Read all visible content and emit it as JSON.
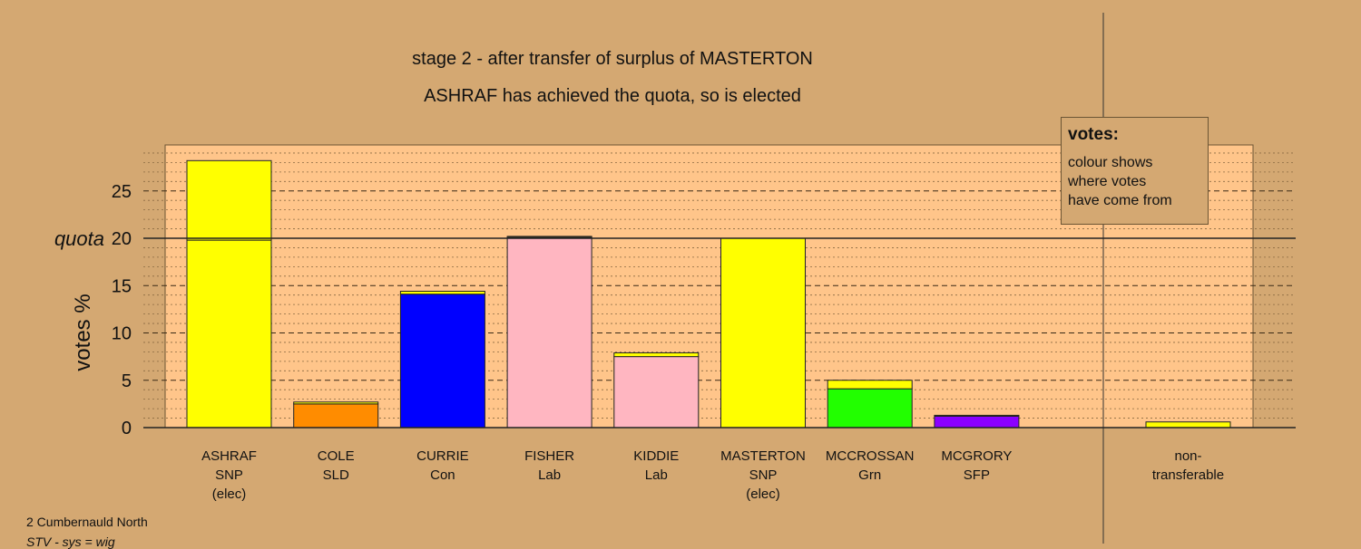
{
  "chart_data": {
    "type": "bar",
    "title": "stage 2 - after transfer of surplus of MASTERTON",
    "subtitle": "ASHRAF has achieved the quota, so is elected",
    "ylabel": "votes %",
    "ylim": [
      0,
      30
    ],
    "yticks": [
      "0",
      "5",
      "10",
      "15",
      "20",
      "25"
    ],
    "quota": {
      "value": 20,
      "label": "quota"
    },
    "grid": true,
    "categories": [
      {
        "name": "ASHRAF",
        "party": "SNP",
        "status": "(elec)"
      },
      {
        "name": "COLE",
        "party": "SLD",
        "status": ""
      },
      {
        "name": "CURRIE",
        "party": "Con",
        "status": ""
      },
      {
        "name": "FISHER",
        "party": "Lab",
        "status": ""
      },
      {
        "name": "KIDDIE",
        "party": "Lab",
        "status": ""
      },
      {
        "name": "MASTERTON",
        "party": "SNP",
        "status": "(elec)"
      },
      {
        "name": "MCCROSSAN",
        "party": "Grn",
        "status": ""
      },
      {
        "name": "MCGRORY",
        "party": "SFP",
        "status": ""
      }
    ],
    "nontransferable": {
      "label1": "non-",
      "label2": "transferable",
      "value": 0.6,
      "color": "#FFFF00"
    },
    "bars": [
      {
        "segments": [
          {
            "value": 19.8,
            "color": "#FFFF00"
          },
          {
            "value": 8.4,
            "color": "#FFFF00"
          }
        ]
      },
      {
        "segments": [
          {
            "value": 2.5,
            "color": "#FF8C00"
          },
          {
            "value": 0.2,
            "color": "#FFFF00"
          }
        ]
      },
      {
        "segments": [
          {
            "value": 14.1,
            "color": "#0000FF"
          },
          {
            "value": 0.3,
            "color": "#FFFF00"
          }
        ]
      },
      {
        "segments": [
          {
            "value": 20.1,
            "color": "#FFB6C1"
          },
          {
            "value": 0.1,
            "color": "#FFFF00"
          }
        ]
      },
      {
        "segments": [
          {
            "value": 7.5,
            "color": "#FFB6C1"
          },
          {
            "value": 0.4,
            "color": "#FFFF00"
          }
        ]
      },
      {
        "segments": [
          {
            "value": 20.0,
            "color": "#FFFF00"
          }
        ]
      },
      {
        "segments": [
          {
            "value": 4.1,
            "color": "#22FF00"
          },
          {
            "value": 0.9,
            "color": "#FFFF00"
          }
        ]
      },
      {
        "segments": [
          {
            "value": 1.2,
            "color": "#8B00FF"
          },
          {
            "value": 0.1,
            "color": "#FFFF00"
          }
        ]
      }
    ],
    "legend": {
      "title": "votes:",
      "lines": [
        "colour shows",
        "where votes",
        "have come from"
      ],
      "placement": "top-right"
    },
    "plot_background": "#FFC58A",
    "page_background": "#D4A872"
  },
  "footer": {
    "line1": "2 Cumbernauld North",
    "line2": "STV - sys = wig"
  }
}
